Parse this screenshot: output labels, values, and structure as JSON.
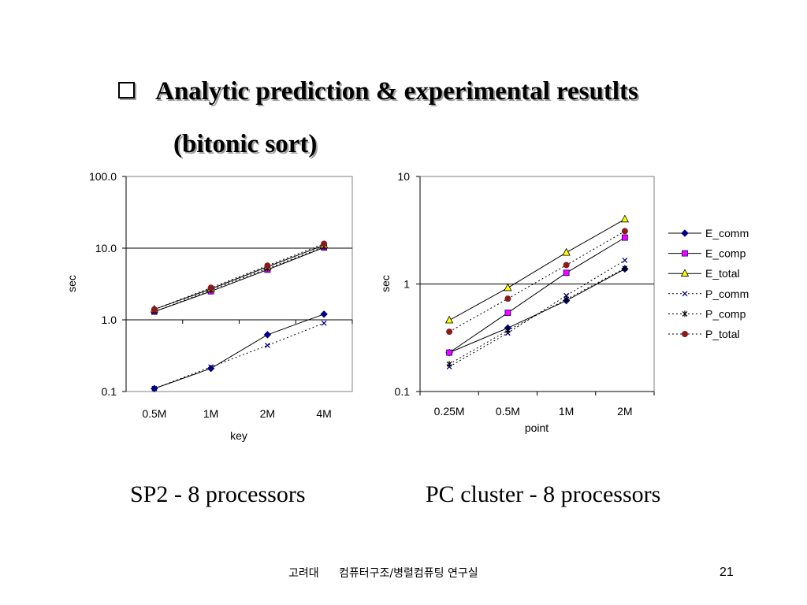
{
  "slide": {
    "bullet_icon": "hollow-square-bullet-icon",
    "title_line1": "Analytic prediction & experimental resutlts",
    "title_line2": "(bitonic sort)",
    "caption_left": "SP2 - 8 processors",
    "caption_right": "PC cluster - 8 processors",
    "footer_org": "고려대",
    "footer_lab": "컴퓨터구조/병렬컴퓨팅 연구실",
    "page_number": "21"
  },
  "chart_data": [
    {
      "type": "line",
      "y_scale": "log",
      "xlabel": "key",
      "ylabel": "sec",
      "ylim": [
        0.1,
        100
      ],
      "y_ticks": [
        "100.0",
        "10.0",
        "1.0",
        "0.1"
      ],
      "grid": "horizontal major",
      "legend": null,
      "categories": [
        "0.5M",
        "1M",
        "2M",
        "4M"
      ],
      "series": [
        {
          "values": [
            0.11,
            0.21,
            0.62,
            1.2
          ],
          "color": "#000080"
        },
        {
          "values": [
            1.3,
            2.5,
            5.0,
            10.2
          ],
          "color": "#FF00FF"
        },
        {
          "values": [
            1.4,
            2.7,
            5.5,
            11.0
          ],
          "color": "#FFFF00"
        },
        {
          "values": [
            0.11,
            0.22,
            0.44,
            0.9
          ],
          "color": "#000080"
        },
        {
          "values": [
            1.3,
            2.6,
            5.2,
            10.4
          ],
          "color": "#000000"
        },
        {
          "values": [
            1.4,
            2.8,
            5.7,
            11.5
          ],
          "color": "#8B1A1A"
        }
      ]
    },
    {
      "type": "line",
      "y_scale": "log",
      "xlabel": "point",
      "ylabel": "sec",
      "ylim": [
        0.1,
        10
      ],
      "y_ticks": [
        "10",
        "1",
        "0.1"
      ],
      "grid": "horizontal major",
      "legend": "right",
      "categories": [
        "0.25M",
        "0.5M",
        "1M",
        "2M"
      ],
      "series": [
        {
          "name": "E_comm",
          "values": [
            0.23,
            0.39,
            0.7,
            1.38
          ],
          "color": "#000080"
        },
        {
          "name": "E_comp",
          "values": [
            0.23,
            0.54,
            1.27,
            2.7
          ],
          "color": "#FF00FF"
        },
        {
          "name": "E_total",
          "values": [
            0.46,
            0.92,
            1.96,
            4.0
          ],
          "color": "#FFFF00"
        },
        {
          "name": "P_comm",
          "values": [
            0.17,
            0.35,
            0.78,
            1.66
          ],
          "color": "#000080"
        },
        {
          "name": "P_comp",
          "values": [
            0.18,
            0.37,
            0.72,
            1.4
          ],
          "color": "#000000"
        },
        {
          "name": "P_total",
          "values": [
            0.36,
            0.73,
            1.5,
            3.1
          ],
          "color": "#8B1A1A"
        }
      ]
    }
  ]
}
